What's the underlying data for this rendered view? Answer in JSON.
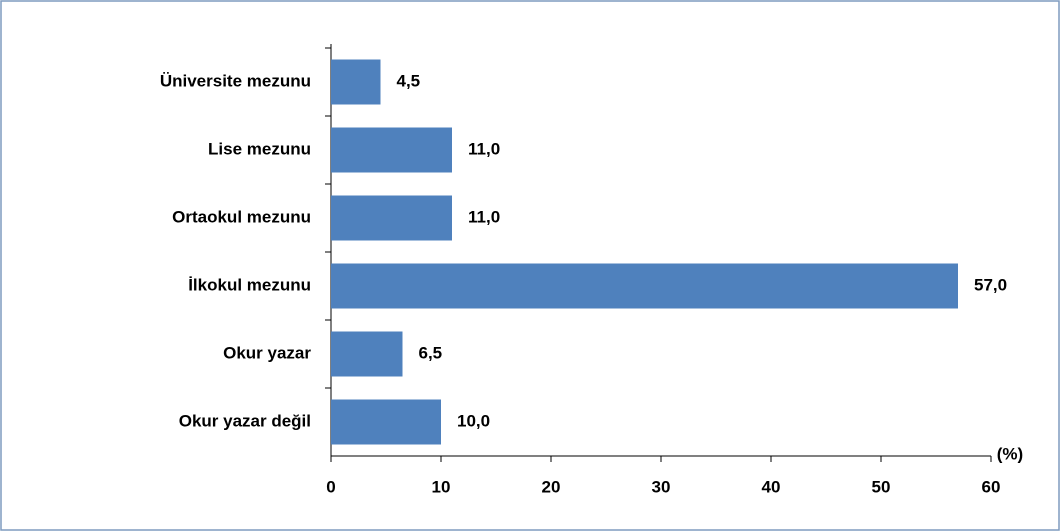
{
  "chart_data": {
    "type": "bar",
    "orientation": "horizontal",
    "categories": [
      "Üniversite mezunu",
      "Lise mezunu",
      "Ortaokul mezunu",
      "İlkokul mezunu",
      "Okur yazar",
      "Okur yazar değil"
    ],
    "values": [
      4.5,
      11.0,
      11.0,
      57.0,
      6.5,
      10.0
    ],
    "value_labels": [
      "4,5",
      "11,0",
      "11,0",
      "57,0",
      "6,5",
      "10,0"
    ],
    "color": "#4f81bd",
    "xlabel": "(%)",
    "xlim": [
      0,
      60
    ],
    "xticks": [
      0,
      10,
      20,
      30,
      40,
      50,
      60
    ],
    "grid": false
  }
}
